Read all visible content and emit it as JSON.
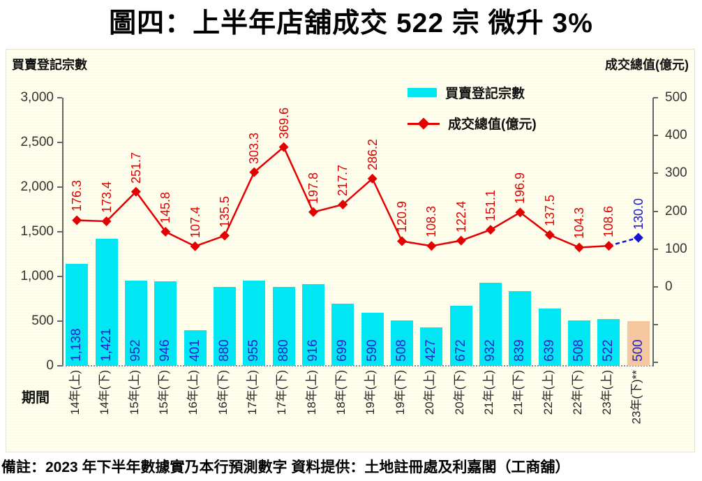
{
  "title": "圖四：上半年店舖成交 522 宗  微升 3%",
  "footer_note": "備註：2023 年下半年數據實乃本行預測數字  資料提供：土地註冊處及利嘉閣（工商舖）",
  "axis_titles": {
    "left": "買賣登記宗數",
    "right": "成交總值(億元)",
    "x": "期間"
  },
  "legend": {
    "items": [
      {
        "label": "買賣登記宗數",
        "type": "bar"
      },
      {
        "label": "成交總值(億元)",
        "type": "line"
      }
    ]
  },
  "colors": {
    "bar": "#00e6f2",
    "forecast_bar": "#f4c79e",
    "line": "#e40000",
    "forecast_line": "#1414cc",
    "bar_label": "#2222cc",
    "line_label": "#dd0000",
    "forecast_label": "#1414cc",
    "background": "#fffde4"
  },
  "chart_data": {
    "type": "bar+line",
    "title": "圖四：上半年店舖成交 522 宗  微升 3%",
    "categories": [
      "14年(上)",
      "14年(下)",
      "15年(上)",
      "15年(下)",
      "16年(上)",
      "16年(下)",
      "17年(上)",
      "17年(下)",
      "18年(上)",
      "18年(下)",
      "19年(上)",
      "19年(下)",
      "20年(上)",
      "20年(下)",
      "21年(上)",
      "21年(下)",
      "22年(上)",
      "22年(下)",
      "23年(上)",
      "23年(下)**"
    ],
    "series": [
      {
        "name": "買賣登記宗數",
        "type": "bar",
        "axis": "left",
        "values": [
          1138,
          1421,
          952,
          946,
          401,
          880,
          955,
          880,
          916,
          699,
          590,
          508,
          427,
          672,
          932,
          839,
          639,
          508,
          522,
          500
        ],
        "labels": [
          "1,138",
          "1,421",
          "952",
          "946",
          "401",
          "880",
          "955",
          "880",
          "916",
          "699",
          "590",
          "508",
          "427",
          "672",
          "932",
          "839",
          "639",
          "508",
          "522",
          "500"
        ],
        "forecast_index": 19
      },
      {
        "name": "成交總值(億元)",
        "type": "line",
        "axis": "right",
        "values": [
          176.3,
          173.4,
          251.7,
          145.8,
          107.4,
          135.5,
          303.3,
          369.6,
          197.8,
          217.7,
          286.2,
          120.9,
          108.3,
          122.4,
          151.1,
          196.9,
          137.5,
          104.3,
          108.6,
          130.0
        ],
        "labels": [
          "176.3",
          "173.4",
          "251.7",
          "145.8",
          "107.4",
          "135.5",
          "303.3",
          "369.6",
          "197.8",
          "217.7",
          "286.2",
          "120.9",
          "108.3",
          "122.4",
          "151.1",
          "196.9",
          "137.5",
          "104.3",
          "108.6",
          "130.0"
        ],
        "forecast_index": 19
      }
    ],
    "left_axis": {
      "min": 0,
      "max": 3000,
      "step": 500,
      "tick_labels": [
        "0",
        "500",
        "1,000",
        "1,500",
        "2,000",
        "2,500",
        "3,000"
      ]
    },
    "right_axis": {
      "max": 500,
      "step": 100,
      "tick_labels": [
        "500",
        "400",
        "300",
        "200",
        "100",
        "0"
      ],
      "unlabeled_ticks_below_zero": 2
    },
    "x_axis_label": "期間",
    "legend_position": "top-right",
    "grid": "off"
  }
}
